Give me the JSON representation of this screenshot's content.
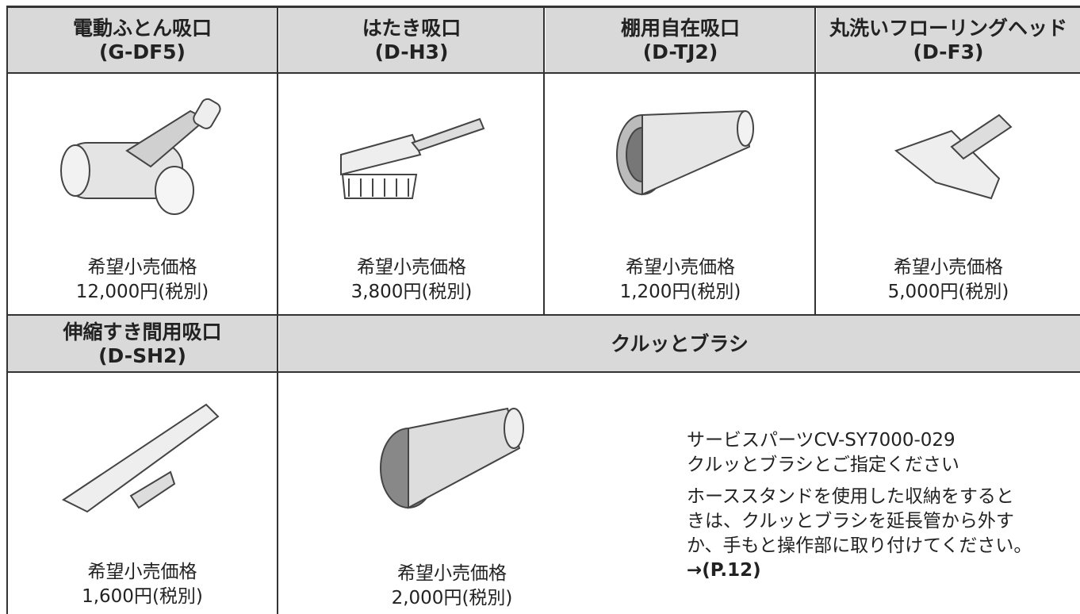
{
  "table": {
    "header_row1": [
      {
        "name": "電動ふとん吸口",
        "model": "(G-DF5)"
      },
      {
        "name": "はたき吸口",
        "model": "(D-H3)"
      },
      {
        "name": "棚用自在吸口",
        "model": "(D-TJ2)"
      },
      {
        "name": "丸洗いフローリングヘッド",
        "model": "(D-F3)"
      }
    ],
    "row1_prices": [
      {
        "label": "希望小売価格",
        "price": "12,000円(税別)"
      },
      {
        "label": "希望小売価格",
        "price": "3,800円(税別)"
      },
      {
        "label": "希望小売価格",
        "price": "1,200円(税別)"
      },
      {
        "label": "希望小売価格",
        "price": "5,000円(税別)"
      }
    ],
    "header_row2": [
      {
        "name": "伸縮すき間用吸口",
        "model": "(D-SH2)"
      },
      {
        "name": "クルッとブラシ"
      }
    ],
    "row2_prices": [
      {
        "label": "希望小売価格",
        "price": "1,600円(税別)"
      },
      {
        "label": "希望小売価格",
        "price": "2,000円(税別)"
      }
    ],
    "note": {
      "part": "サービスパーツCV-SY7000-029",
      "instruction": "クルッとブラシとご指定ください",
      "description": [
        "ホーススタンドを使用した収納をすると",
        "きは、クルッとブラシを延長管から外す",
        "か、手もと操作部に取り付けてください。"
      ],
      "reference": "→(P.12)"
    }
  }
}
